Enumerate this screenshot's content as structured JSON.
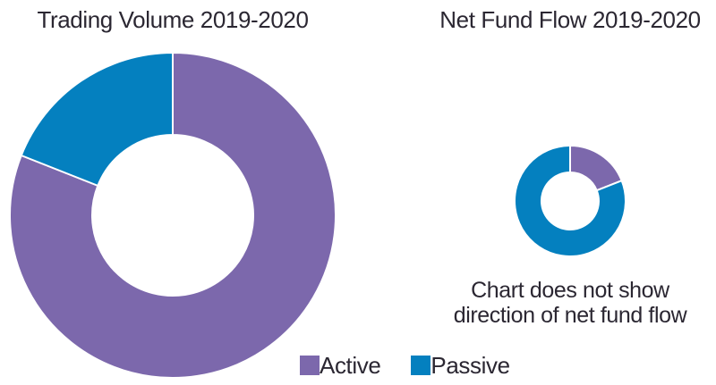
{
  "figure": {
    "background": "#ffffff",
    "text_color": "#2b2732"
  },
  "legend": {
    "position": "bottom-center",
    "items": [
      {
        "label": "Active",
        "color": "#7c68ac"
      },
      {
        "label": "Passive",
        "color": "#0480bf"
      }
    ]
  },
  "note": {
    "line1": "Chart does not show",
    "line2": "direction of net fund flow"
  },
  "chart_data": [
    {
      "type": "pie",
      "variant": "donut",
      "title": "Trading Volume 2019-2020",
      "start_angle_deg": 0,
      "direction": "clockwise",
      "values_estimated_from_arc_angles": true,
      "segments": [
        {
          "label": "Active",
          "value": 81,
          "color": "#7c68ac"
        },
        {
          "label": "Passive",
          "value": 19,
          "color": "#0480bf"
        }
      ],
      "outer_radius_px": 182,
      "inner_radius_px": 90
    },
    {
      "type": "pie",
      "variant": "donut",
      "title": "Net Fund Flow 2019-2020",
      "start_angle_deg": 0,
      "direction": "clockwise",
      "values_estimated_from_arc_angles": true,
      "segments": [
        {
          "label": "Active",
          "value": 19,
          "color": "#7c68ac"
        },
        {
          "label": "Passive",
          "value": 81,
          "color": "#0480bf"
        }
      ],
      "outer_radius_px": 62,
      "inner_radius_px": 32,
      "annotation": "Chart does not show direction of net fund flow"
    }
  ]
}
